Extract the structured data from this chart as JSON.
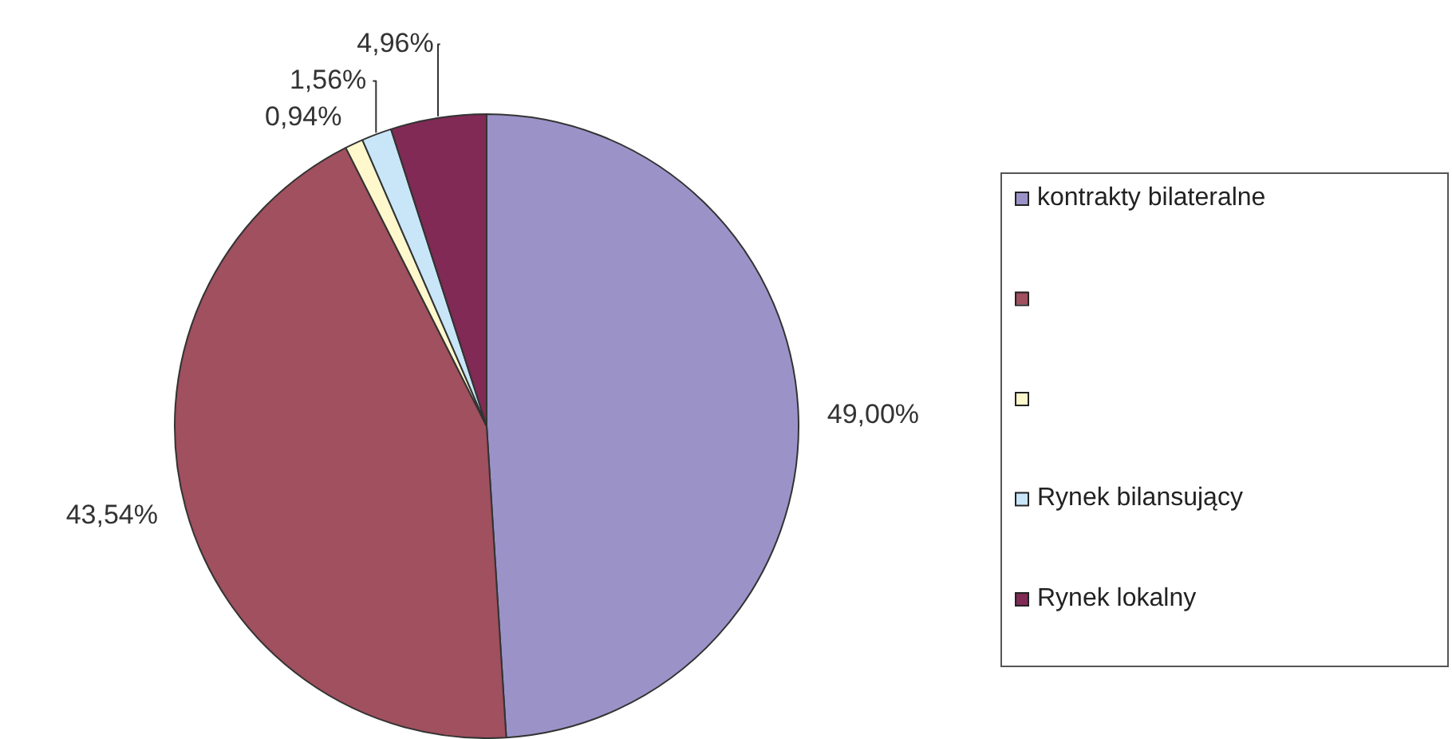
{
  "chart_data": {
    "type": "pie",
    "categories": [
      "kontrakty bilateralne",
      null,
      null,
      "Rynek bilansujący",
      "Rynek lokalny"
    ],
    "values": [
      49,
      43.54,
      0.94,
      1.56,
      4.96
    ],
    "colors": [
      "#9b93c8",
      "#a0505e",
      "#fff8cc",
      "#c8e6f8",
      "#802a55"
    ],
    "value_labels": [
      "49,00%",
      "43,54%",
      "0,94%",
      "1,56%",
      "4,96%"
    ],
    "legend": "right"
  }
}
